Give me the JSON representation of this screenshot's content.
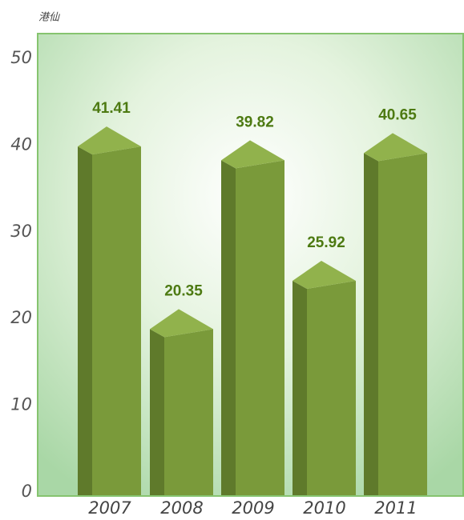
{
  "chart_data": {
    "type": "bar3d",
    "y_label": "港仙",
    "categories": [
      "2007",
      "2008",
      "2009",
      "2010",
      "2011"
    ],
    "values": [
      41.41,
      20.35,
      39.82,
      25.92,
      40.65
    ],
    "value_labels": [
      "41.41",
      "20.35",
      "39.82",
      "25.92",
      "40.65"
    ],
    "color": "#7a9a3a",
    "ylim": [
      0,
      50
    ],
    "yticks": [
      0,
      10,
      20,
      30,
      40,
      50
    ]
  }
}
